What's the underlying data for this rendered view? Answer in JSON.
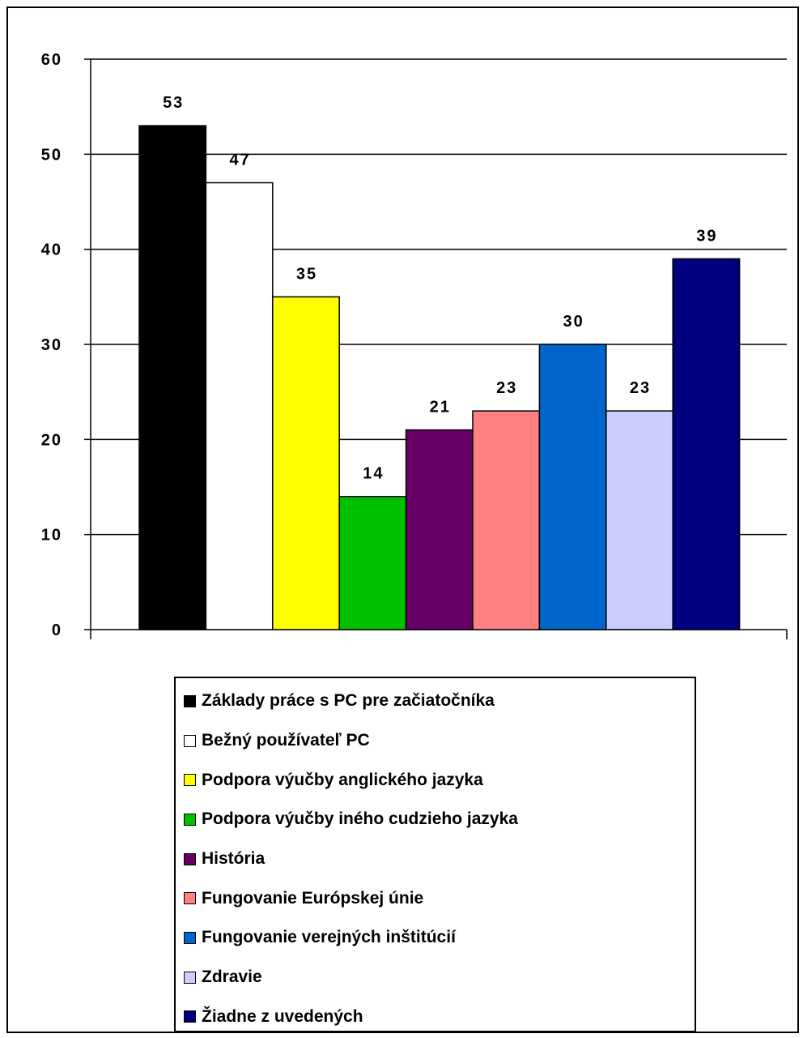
{
  "chart_data": {
    "type": "bar",
    "ylim": [
      0,
      60
    ],
    "yticks": [
      0,
      10,
      20,
      30,
      40,
      50,
      60
    ],
    "grid": true,
    "legend_position": "bottom",
    "series": [
      {
        "name": "Základy práce s PC pre začiatočníka",
        "value": 53,
        "color": "#000000"
      },
      {
        "name": "Bežný používateľ PC",
        "value": 47,
        "color": "#ffffff"
      },
      {
        "name": "Podpora výučby anglického jazyka",
        "value": 35,
        "color": "#ffff00"
      },
      {
        "name": "Podpora výučby iného cudzieho jazyka",
        "value": 14,
        "color": "#00c000"
      },
      {
        "name": "História",
        "value": 21,
        "color": "#660066"
      },
      {
        "name": "Fungovanie Európskej únie",
        "value": 23,
        "color": "#ff8080"
      },
      {
        "name": "Fungovanie verejných inštitúcií",
        "value": 30,
        "color": "#0066cc"
      },
      {
        "name": "Zdravie",
        "value": 23,
        "color": "#ccccff"
      },
      {
        "name": "Žiadne z uvedených",
        "value": 39,
        "color": "#000080"
      }
    ]
  }
}
